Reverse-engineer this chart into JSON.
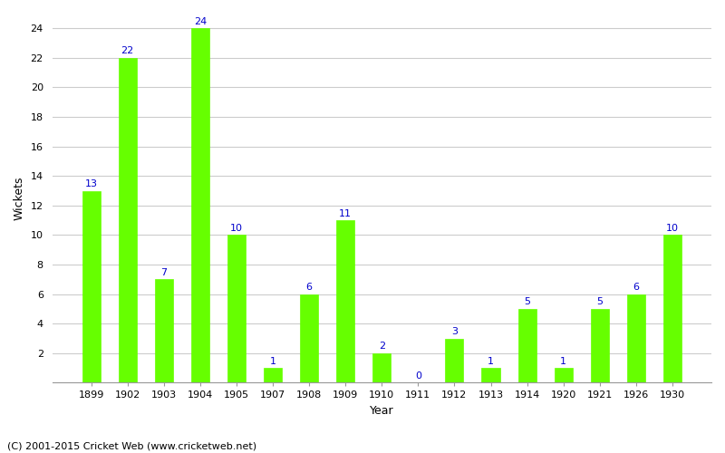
{
  "years": [
    "1899",
    "1902",
    "1903",
    "1904",
    "1905",
    "1907",
    "1908",
    "1909",
    "1910",
    "1911",
    "1912",
    "1913",
    "1914",
    "1920",
    "1921",
    "1926",
    "1930"
  ],
  "wickets": [
    13,
    22,
    7,
    24,
    10,
    1,
    6,
    11,
    2,
    0,
    3,
    1,
    5,
    1,
    5,
    6,
    10
  ],
  "bar_color": "#66ff00",
  "label_color": "#0000cc",
  "xlabel": "Year",
  "ylabel": "Wickets",
  "ylim": [
    0,
    25
  ],
  "yticks": [
    0,
    2,
    4,
    6,
    8,
    10,
    12,
    14,
    16,
    18,
    20,
    22,
    24
  ],
  "background_color": "#ffffff",
  "footer": "(C) 2001-2015 Cricket Web (www.cricketweb.net)",
  "label_fontsize": 8,
  "axis_label_fontsize": 9,
  "footer_fontsize": 8,
  "grid_color": "#cccccc"
}
